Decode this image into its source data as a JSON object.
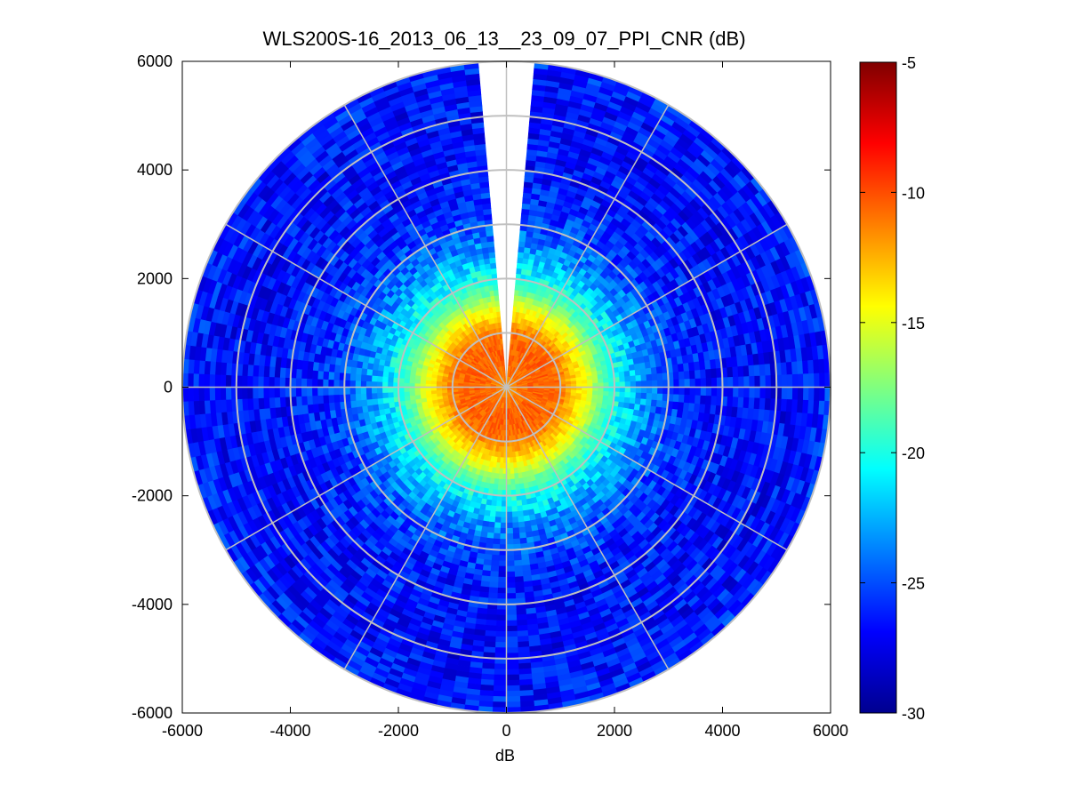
{
  "chart_data": {
    "type": "heatmap",
    "subtype": "polar-ppi",
    "title": "WLS200S-16_2013_06_13__23_09_07_PPI_CNR (dB)",
    "xlabel": "dB",
    "ylabel": "",
    "xlim": [
      -6000,
      6000
    ],
    "ylim": [
      -6000,
      6000
    ],
    "x_ticks": [
      "-6000",
      "-4000",
      "-2000",
      "0",
      "2000",
      "4000",
      "6000"
    ],
    "y_ticks": [
      "6000",
      "4000",
      "2000",
      "0",
      "-2000",
      "-4000",
      "-6000"
    ],
    "x_tick_values": [
      -6000,
      -4000,
      -2000,
      0,
      2000,
      4000,
      6000
    ],
    "y_tick_values": [
      6000,
      4000,
      2000,
      0,
      -2000,
      -4000,
      -6000
    ],
    "range_rings": [
      1000,
      2000,
      3000,
      4000,
      5000,
      6000
    ],
    "spokes_deg": [
      0,
      30,
      60,
      90,
      120,
      150,
      180,
      210,
      240,
      270,
      300,
      330
    ],
    "max_range": 6000,
    "gap_azimuth_deg": [
      356,
      4
    ],
    "colorbar": {
      "range": [
        -30,
        -5
      ],
      "ticks": [
        "-5",
        "-10",
        "-15",
        "-20",
        "-25",
        "-30"
      ],
      "tick_values": [
        -5,
        -10,
        -15,
        -20,
        -25,
        -30
      ],
      "colormap": "jet"
    },
    "radial_profile": {
      "range_m": [
        0,
        250,
        500,
        750,
        1000,
        1250,
        1500,
        1750,
        2000,
        2500,
        3000,
        3500,
        4000,
        4500,
        5000,
        5500,
        6000
      ],
      "cnr_db": [
        -12,
        -11,
        -10.5,
        -10.5,
        -11,
        -13,
        -15,
        -18,
        -20,
        -23,
        -25,
        -26,
        -26.5,
        -26.5,
        -26.8,
        -26.5,
        -26
      ]
    }
  }
}
